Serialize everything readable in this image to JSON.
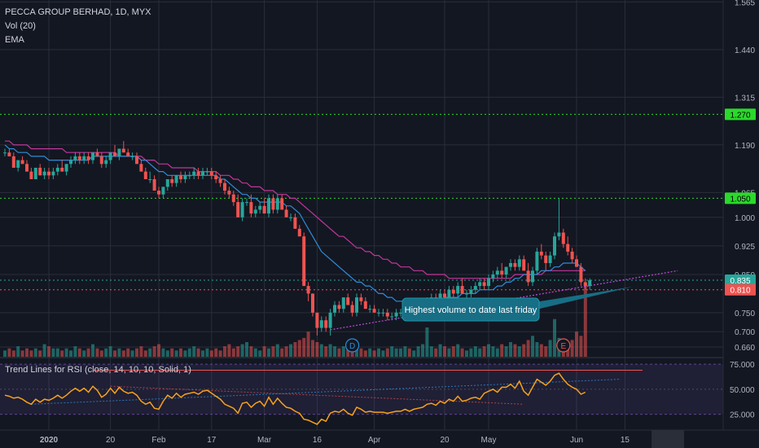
{
  "header": {
    "symbol_line": "PECCA GROUP BERHAD, 1D, MYX",
    "indicator_vol": "Vol (20)",
    "indicator_ema": "EMA"
  },
  "rsi_panel": {
    "title": "Trend Lines for RSI (close, 14, 10, 10, Solid, 1)",
    "levels": [
      75,
      50,
      25
    ],
    "level_labels": [
      "75.000",
      "50.000",
      "25.000"
    ],
    "ylim": [
      10,
      80
    ]
  },
  "annotation": {
    "text": "Highest volume to date last friday"
  },
  "event_markers": [
    {
      "label": "D",
      "x_index": 79
    },
    {
      "label": "E",
      "x_index": 127
    }
  ],
  "price_axis": {
    "ticks": [
      "1.565",
      "1.440",
      "1.315",
      "1.190",
      "1.065",
      "1.000",
      "0.925",
      "0.850",
      "0.750",
      "0.700",
      "0.660"
    ],
    "tick_values": [
      1.565,
      1.44,
      1.315,
      1.19,
      1.065,
      1.0,
      0.925,
      0.85,
      0.75,
      0.7,
      0.66
    ]
  },
  "price_tags": [
    {
      "label": "1.270",
      "value": 1.27,
      "color": "#2bd92b",
      "text_color": "#000000"
    },
    {
      "label": "1.050",
      "value": 1.05,
      "color": "#2bd92b",
      "text_color": "#000000"
    },
    {
      "label": "0.835",
      "value": 0.835,
      "color": "#26a69a",
      "text_color": "#ffffff"
    },
    {
      "label": "0.810",
      "value": 0.81,
      "color": "#ef5350",
      "text_color": "#ffffff"
    }
  ],
  "time_axis": {
    "labels": [
      "2020",
      "20",
      "Feb",
      "17",
      "Mar",
      "16",
      "Apr",
      "20",
      "May",
      "Jun",
      "15"
    ],
    "label_indices": [
      10,
      24,
      35,
      47,
      59,
      71,
      84,
      100,
      110,
      130,
      141
    ]
  },
  "colors": {
    "background": "#131722",
    "grid": "#2a2e39",
    "up": "#26a69a",
    "down": "#ef5350",
    "ema_fast": "#2f8cd8",
    "ema_slow": "#c2379b",
    "support_line": "#c44ad8",
    "rsi_line": "#f7a21b",
    "rsi_band": "#7e57c2",
    "level_green": "#2bd92b",
    "level_red": "#ef5350"
  },
  "chart_data": {
    "type": "candlestick",
    "title": "PECCA GROUP BERHAD, 1D, MYX",
    "ylim": [
      0.63,
      1.57
    ],
    "horizontal_levels": [
      1.27,
      1.05,
      0.835,
      0.81
    ],
    "support_trendline": {
      "from": {
        "x_index": 74,
        "price": 0.705
      },
      "to": {
        "x_index": 153,
        "price": 0.86
      }
    },
    "ohlc": [
      [
        1.17,
        1.18,
        1.16,
        1.17
      ],
      [
        1.17,
        1.18,
        1.16,
        1.16
      ],
      [
        1.16,
        1.17,
        1.13,
        1.13
      ],
      [
        1.13,
        1.15,
        1.12,
        1.15
      ],
      [
        1.15,
        1.16,
        1.14,
        1.14
      ],
      [
        1.14,
        1.15,
        1.12,
        1.12
      ],
      [
        1.12,
        1.13,
        1.1,
        1.1
      ],
      [
        1.1,
        1.13,
        1.1,
        1.13
      ],
      [
        1.13,
        1.14,
        1.11,
        1.11
      ],
      [
        1.11,
        1.13,
        1.1,
        1.12
      ],
      [
        1.12,
        1.13,
        1.1,
        1.11
      ],
      [
        1.11,
        1.13,
        1.1,
        1.12
      ],
      [
        1.12,
        1.14,
        1.11,
        1.13
      ],
      [
        1.13,
        1.15,
        1.12,
        1.12
      ],
      [
        1.12,
        1.14,
        1.11,
        1.14
      ],
      [
        1.14,
        1.16,
        1.13,
        1.15
      ],
      [
        1.15,
        1.17,
        1.14,
        1.16
      ],
      [
        1.16,
        1.17,
        1.14,
        1.15
      ],
      [
        1.15,
        1.17,
        1.14,
        1.16
      ],
      [
        1.16,
        1.17,
        1.14,
        1.15
      ],
      [
        1.15,
        1.17,
        1.14,
        1.17
      ],
      [
        1.17,
        1.18,
        1.16,
        1.16
      ],
      [
        1.16,
        1.17,
        1.13,
        1.14
      ],
      [
        1.14,
        1.16,
        1.13,
        1.15
      ],
      [
        1.15,
        1.17,
        1.14,
        1.17
      ],
      [
        1.17,
        1.19,
        1.16,
        1.16
      ],
      [
        1.16,
        1.18,
        1.15,
        1.18
      ],
      [
        1.18,
        1.2,
        1.17,
        1.17
      ],
      [
        1.17,
        1.18,
        1.16,
        1.16
      ],
      [
        1.16,
        1.17,
        1.15,
        1.16
      ],
      [
        1.16,
        1.17,
        1.14,
        1.14
      ],
      [
        1.14,
        1.15,
        1.12,
        1.12
      ],
      [
        1.12,
        1.13,
        1.1,
        1.1
      ],
      [
        1.1,
        1.12,
        1.09,
        1.1
      ],
      [
        1.1,
        1.11,
        1.07,
        1.07
      ],
      [
        1.07,
        1.08,
        1.05,
        1.06
      ],
      [
        1.06,
        1.08,
        1.05,
        1.08
      ],
      [
        1.08,
        1.1,
        1.07,
        1.1
      ],
      [
        1.1,
        1.11,
        1.08,
        1.09
      ],
      [
        1.09,
        1.11,
        1.08,
        1.11
      ],
      [
        1.11,
        1.12,
        1.09,
        1.1
      ],
      [
        1.1,
        1.12,
        1.09,
        1.11
      ],
      [
        1.11,
        1.12,
        1.1,
        1.11
      ],
      [
        1.11,
        1.13,
        1.1,
        1.12
      ],
      [
        1.12,
        1.13,
        1.1,
        1.11
      ],
      [
        1.11,
        1.13,
        1.1,
        1.12
      ],
      [
        1.12,
        1.13,
        1.11,
        1.12
      ],
      [
        1.12,
        1.13,
        1.1,
        1.11
      ],
      [
        1.11,
        1.12,
        1.09,
        1.1
      ],
      [
        1.1,
        1.11,
        1.08,
        1.09
      ],
      [
        1.09,
        1.1,
        1.06,
        1.07
      ],
      [
        1.07,
        1.08,
        1.05,
        1.06
      ],
      [
        1.06,
        1.07,
        1.03,
        1.04
      ],
      [
        1.04,
        1.06,
        1.0,
        1.0
      ],
      [
        1.0,
        1.05,
        0.99,
        1.04
      ],
      [
        1.04,
        1.05,
        1.03,
        1.04
      ],
      [
        1.04,
        1.06,
        1.0,
        1.01
      ],
      [
        1.01,
        1.03,
        1.0,
        1.02
      ],
      [
        1.02,
        1.04,
        1.01,
        1.03
      ],
      [
        1.03,
        1.05,
        1.01,
        1.01
      ],
      [
        1.01,
        1.06,
        1.0,
        1.05
      ],
      [
        1.05,
        1.06,
        1.01,
        1.02
      ],
      [
        1.02,
        1.06,
        1.01,
        1.05
      ],
      [
        1.05,
        1.06,
        1.02,
        1.02
      ],
      [
        1.02,
        1.03,
        1.0,
        1.0
      ],
      [
        1.0,
        1.01,
        0.99,
        1.0
      ],
      [
        1.0,
        1.01,
        0.97,
        0.97
      ],
      [
        0.97,
        0.98,
        0.95,
        0.95
      ],
      [
        0.95,
        0.96,
        0.82,
        0.82
      ],
      [
        0.82,
        0.83,
        0.78,
        0.8
      ],
      [
        0.8,
        0.8,
        0.74,
        0.75
      ],
      [
        0.75,
        0.75,
        0.69,
        0.71
      ],
      [
        0.71,
        0.74,
        0.7,
        0.73
      ],
      [
        0.73,
        0.74,
        0.7,
        0.71
      ],
      [
        0.71,
        0.76,
        0.69,
        0.75
      ],
      [
        0.75,
        0.78,
        0.74,
        0.77
      ],
      [
        0.77,
        0.78,
        0.75,
        0.76
      ],
      [
        0.76,
        0.79,
        0.75,
        0.79
      ],
      [
        0.79,
        0.8,
        0.77,
        0.77
      ],
      [
        0.77,
        0.78,
        0.74,
        0.75
      ],
      [
        0.75,
        0.8,
        0.74,
        0.79
      ],
      [
        0.79,
        0.8,
        0.77,
        0.78
      ],
      [
        0.78,
        0.79,
        0.76,
        0.76
      ],
      [
        0.76,
        0.77,
        0.75,
        0.76
      ],
      [
        0.76,
        0.77,
        0.75,
        0.75
      ],
      [
        0.75,
        0.76,
        0.74,
        0.75
      ],
      [
        0.75,
        0.76,
        0.74,
        0.75
      ],
      [
        0.75,
        0.76,
        0.73,
        0.74
      ],
      [
        0.74,
        0.75,
        0.73,
        0.74
      ],
      [
        0.74,
        0.76,
        0.73,
        0.75
      ],
      [
        0.75,
        0.76,
        0.74,
        0.75
      ],
      [
        0.75,
        0.76,
        0.74,
        0.76
      ],
      [
        0.76,
        0.77,
        0.74,
        0.75
      ],
      [
        0.75,
        0.76,
        0.74,
        0.76
      ],
      [
        0.76,
        0.77,
        0.75,
        0.76
      ],
      [
        0.76,
        0.78,
        0.75,
        0.77
      ],
      [
        0.77,
        0.79,
        0.76,
        0.78
      ],
      [
        0.78,
        0.8,
        0.77,
        0.79
      ],
      [
        0.79,
        0.8,
        0.77,
        0.78
      ],
      [
        0.78,
        0.81,
        0.77,
        0.8
      ],
      [
        0.8,
        0.81,
        0.78,
        0.79
      ],
      [
        0.79,
        0.82,
        0.78,
        0.81
      ],
      [
        0.81,
        0.82,
        0.79,
        0.8
      ],
      [
        0.8,
        0.83,
        0.79,
        0.82
      ],
      [
        0.82,
        0.84,
        0.8,
        0.8
      ],
      [
        0.8,
        0.81,
        0.78,
        0.8
      ],
      [
        0.8,
        0.82,
        0.79,
        0.81
      ],
      [
        0.81,
        0.83,
        0.8,
        0.82
      ],
      [
        0.82,
        0.84,
        0.81,
        0.83
      ],
      [
        0.83,
        0.84,
        0.81,
        0.82
      ],
      [
        0.82,
        0.85,
        0.81,
        0.84
      ],
      [
        0.84,
        0.86,
        0.83,
        0.85
      ],
      [
        0.85,
        0.87,
        0.84,
        0.86
      ],
      [
        0.86,
        0.88,
        0.84,
        0.85
      ],
      [
        0.85,
        0.87,
        0.84,
        0.87
      ],
      [
        0.87,
        0.89,
        0.86,
        0.88
      ],
      [
        0.88,
        0.89,
        0.86,
        0.87
      ],
      [
        0.87,
        0.9,
        0.86,
        0.89
      ],
      [
        0.89,
        0.9,
        0.86,
        0.86
      ],
      [
        0.86,
        0.88,
        0.82,
        0.83
      ],
      [
        0.83,
        0.87,
        0.82,
        0.86
      ],
      [
        0.86,
        0.92,
        0.85,
        0.91
      ],
      [
        0.91,
        0.93,
        0.89,
        0.9
      ],
      [
        0.9,
        0.91,
        0.86,
        0.88
      ],
      [
        0.88,
        0.91,
        0.87,
        0.9
      ],
      [
        0.9,
        0.96,
        0.89,
        0.95
      ],
      [
        0.95,
        1.05,
        0.94,
        0.96
      ],
      [
        0.96,
        0.97,
        0.92,
        0.93
      ],
      [
        0.93,
        0.95,
        0.9,
        0.91
      ],
      [
        0.91,
        0.92,
        0.88,
        0.89
      ],
      [
        0.89,
        0.9,
        0.87,
        0.87
      ],
      [
        0.87,
        0.88,
        0.82,
        0.83
      ],
      [
        0.83,
        0.84,
        0.81,
        0.82
      ],
      [
        0.82,
        0.84,
        0.81,
        0.835
      ]
    ],
    "volume": [
      3,
      4,
      3,
      5,
      3,
      4,
      3,
      4,
      3,
      6,
      5,
      4,
      4,
      3,
      4,
      3,
      5,
      4,
      3,
      4,
      6,
      4,
      3,
      4,
      5,
      3,
      4,
      3,
      4,
      3,
      4,
      5,
      3,
      4,
      5,
      6,
      4,
      3,
      4,
      3,
      4,
      3,
      4,
      5,
      4,
      3,
      4,
      3,
      4,
      3,
      5,
      6,
      4,
      5,
      6,
      7,
      5,
      4,
      3,
      5,
      4,
      5,
      6,
      4,
      5,
      6,
      7,
      8,
      9,
      12,
      8,
      7,
      6,
      5,
      6,
      5,
      4,
      5,
      4,
      6,
      5,
      4,
      3,
      4,
      3,
      4,
      3,
      4,
      5,
      4,
      4,
      5,
      4,
      3,
      5,
      6,
      14,
      5,
      4,
      6,
      5,
      4,
      5,
      6,
      4,
      3,
      4,
      5,
      4,
      5,
      6,
      5,
      4,
      6,
      5,
      7,
      6,
      5,
      6,
      8,
      10,
      7,
      6,
      5,
      8,
      18,
      9,
      7,
      6,
      8,
      12,
      10,
      35
    ],
    "ema_fast": [
      1.19,
      1.18,
      1.18,
      1.17,
      1.17,
      1.17,
      1.16,
      1.16,
      1.16,
      1.16,
      1.15,
      1.15,
      1.15,
      1.15,
      1.15,
      1.15,
      1.15,
      1.15,
      1.15,
      1.15,
      1.16,
      1.16,
      1.16,
      1.16,
      1.16,
      1.16,
      1.16,
      1.16,
      1.16,
      1.16,
      1.16,
      1.15,
      1.15,
      1.14,
      1.13,
      1.12,
      1.12,
      1.11,
      1.11,
      1.11,
      1.11,
      1.11,
      1.11,
      1.11,
      1.11,
      1.11,
      1.11,
      1.11,
      1.11,
      1.1,
      1.1,
      1.09,
      1.08,
      1.07,
      1.06,
      1.06,
      1.05,
      1.05,
      1.04,
      1.04,
      1.04,
      1.04,
      1.04,
      1.04,
      1.03,
      1.03,
      1.02,
      1.01,
      0.99,
      0.97,
      0.95,
      0.93,
      0.91,
      0.9,
      0.89,
      0.88,
      0.87,
      0.86,
      0.85,
      0.84,
      0.83,
      0.83,
      0.82,
      0.82,
      0.81,
      0.8,
      0.8,
      0.79,
      0.79,
      0.78,
      0.78,
      0.78,
      0.78,
      0.78,
      0.77,
      0.77,
      0.78,
      0.78,
      0.78,
      0.78,
      0.79,
      0.79,
      0.79,
      0.79,
      0.8,
      0.8,
      0.8,
      0.8,
      0.81,
      0.81,
      0.81,
      0.81,
      0.82,
      0.82,
      0.83,
      0.83,
      0.84,
      0.84,
      0.85,
      0.85,
      0.85,
      0.85,
      0.86,
      0.86,
      0.86,
      0.87,
      0.87,
      0.88,
      0.88,
      0.88,
      0.88,
      0.87,
      0.86
    ],
    "ema_slow": [
      1.2,
      1.2,
      1.19,
      1.19,
      1.19,
      1.19,
      1.18,
      1.18,
      1.18,
      1.18,
      1.18,
      1.18,
      1.18,
      1.18,
      1.17,
      1.17,
      1.17,
      1.17,
      1.17,
      1.17,
      1.17,
      1.17,
      1.17,
      1.17,
      1.17,
      1.17,
      1.16,
      1.16,
      1.16,
      1.16,
      1.16,
      1.16,
      1.15,
      1.15,
      1.15,
      1.14,
      1.14,
      1.14,
      1.13,
      1.13,
      1.13,
      1.13,
      1.13,
      1.13,
      1.12,
      1.12,
      1.12,
      1.12,
      1.12,
      1.11,
      1.11,
      1.11,
      1.1,
      1.1,
      1.09,
      1.09,
      1.08,
      1.08,
      1.08,
      1.07,
      1.07,
      1.07,
      1.06,
      1.06,
      1.06,
      1.05,
      1.05,
      1.04,
      1.03,
      1.02,
      1.01,
      1.0,
      0.99,
      0.98,
      0.97,
      0.96,
      0.95,
      0.95,
      0.94,
      0.93,
      0.92,
      0.92,
      0.91,
      0.91,
      0.9,
      0.9,
      0.89,
      0.89,
      0.88,
      0.88,
      0.87,
      0.87,
      0.87,
      0.86,
      0.86,
      0.86,
      0.85,
      0.85,
      0.85,
      0.85,
      0.85,
      0.84,
      0.84,
      0.84,
      0.84,
      0.84,
      0.84,
      0.84,
      0.84,
      0.84,
      0.84,
      0.84,
      0.84,
      0.84,
      0.84,
      0.84,
      0.85,
      0.85,
      0.85,
      0.85,
      0.85,
      0.85,
      0.85,
      0.86,
      0.86,
      0.86,
      0.86,
      0.86,
      0.86,
      0.86,
      0.86,
      0.86,
      0.86
    ],
    "rsi": [
      44,
      43,
      41,
      42,
      40,
      37,
      35,
      40,
      37,
      40,
      39,
      41,
      44,
      41,
      44,
      48,
      51,
      48,
      51,
      47,
      53,
      49,
      42,
      45,
      51,
      46,
      52,
      48,
      46,
      47,
      44,
      38,
      35,
      37,
      31,
      30,
      38,
      44,
      41,
      46,
      42,
      45,
      46,
      47,
      45,
      48,
      49,
      46,
      43,
      40,
      35,
      33,
      31,
      26,
      36,
      37,
      32,
      36,
      38,
      33,
      42,
      35,
      41,
      36,
      32,
      31,
      28,
      26,
      20,
      19,
      17,
      15,
      20,
      18,
      26,
      28,
      27,
      30,
      26,
      24,
      32,
      30,
      27,
      28,
      27,
      27,
      27,
      26,
      27,
      28,
      28,
      30,
      28,
      30,
      31,
      32,
      35,
      36,
      34,
      38,
      36,
      40,
      38,
      43,
      38,
      39,
      41,
      42,
      40,
      46,
      48,
      50,
      47,
      52,
      52,
      55,
      51,
      58,
      48,
      44,
      52,
      60,
      57,
      54,
      58,
      64,
      66,
      60,
      55,
      52,
      50,
      45,
      47
    ]
  }
}
